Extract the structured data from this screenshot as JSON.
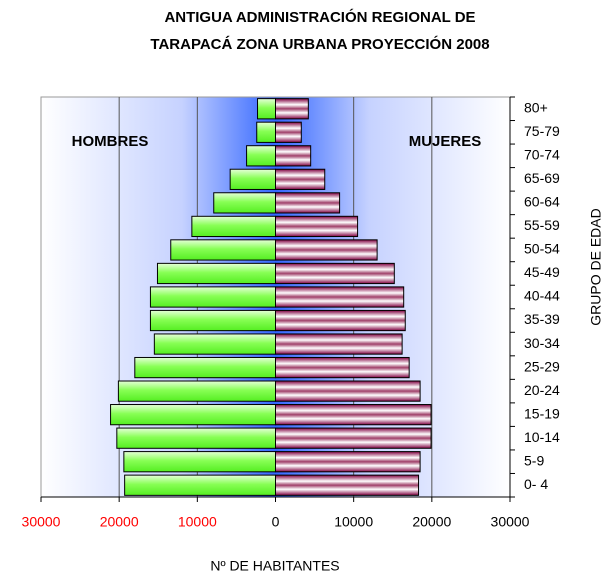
{
  "chart_data": {
    "type": "pyramid",
    "title": [
      "ANTIGUA ADMINISTRACIÓN REGIONAL DE",
      "TARAPACÁ ZONA URBANA PROYECCIÓN 2008"
    ],
    "xlabel": "Nº DE HABITANTES",
    "ylabel": "GRUPO DE EDAD",
    "categories": [
      "0- 4",
      "5-9",
      "10-14",
      "15-19",
      "20-24",
      "25-29",
      "30-34",
      "35-39",
      "40-44",
      "45-49",
      "50-54",
      "55-59",
      "60-64",
      "65-69",
      "70-74",
      "75-79",
      "80+"
    ],
    "series": [
      {
        "name": "HOMBRES",
        "color": "#66ff33",
        "values": [
          -19300,
          -19400,
          -20300,
          -21100,
          -20100,
          -18000,
          -15500,
          -16000,
          -16000,
          -15100,
          -13400,
          -10700,
          -7900,
          -5800,
          -3700,
          -2400,
          -2300
        ]
      },
      {
        "name": "MUJERES",
        "color": "#800040",
        "values": [
          18300,
          18500,
          19900,
          19900,
          18500,
          17100,
          16200,
          16600,
          16400,
          15200,
          13000,
          10500,
          8200,
          6300,
          4500,
          3300,
          4200
        ]
      }
    ],
    "xlim": [
      -30000,
      30000
    ],
    "xticks": [
      {
        "value": -30000,
        "label": "30000"
      },
      {
        "value": -20000,
        "label": "20000"
      },
      {
        "value": -10000,
        "label": "10000"
      },
      0,
      10000,
      20000,
      30000
    ],
    "xtick_label_colors": [
      "#ff0000",
      "#ff0000",
      "#ff0000",
      "#000000",
      "#000000",
      "#000000",
      "#000000"
    ],
    "grid": true
  }
}
